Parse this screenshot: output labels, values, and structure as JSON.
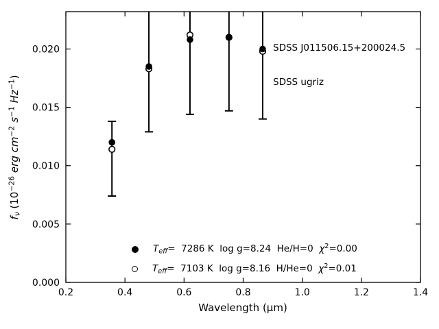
{
  "chart_data": {
    "type": "scatter",
    "description": "Photometric SED of a white dwarf with two model atmosphere fits; filled and open circles with vertical error bars, upper error bars of g,r,i,z clipped at top axis.",
    "xlabel": "Wavelength (μm)",
    "ylabel_plain": "fν (10−26 erg cm−2 s−1 Hz−1)",
    "ylabel_parts": [
      [
        "f",
        "i"
      ],
      [
        "ν",
        "isub"
      ],
      [
        " (10",
        "n"
      ],
      [
        "−26",
        "sup"
      ],
      [
        " ",
        "n"
      ],
      [
        "erg",
        "i"
      ],
      [
        " ",
        "n"
      ],
      [
        "cm",
        "i"
      ],
      [
        "−2",
        "sup"
      ],
      [
        " ",
        "n"
      ],
      [
        "s",
        "i"
      ],
      [
        "−1",
        "sup"
      ],
      [
        " ",
        "n"
      ],
      [
        "Hz",
        "i"
      ],
      [
        "−1",
        "sup"
      ],
      [
        ")",
        "n"
      ]
    ],
    "annotation": {
      "line1": "SDSS J011506.15+200024.5",
      "line2": "SDSS ugriz"
    },
    "xlim": [
      0.2,
      1.4
    ],
    "ylim": [
      0.0,
      0.0232
    ],
    "x_tick_values": [
      0.2,
      0.4,
      0.6,
      0.8,
      1.0,
      1.2,
      1.4
    ],
    "x_tick_labels": [
      "0.2",
      "0.4",
      "0.6",
      "0.8",
      "1.0",
      "1.2",
      "1.4"
    ],
    "y_tick_values": [
      0.0,
      0.005,
      0.01,
      0.015,
      0.02
    ],
    "y_tick_labels": [
      "0.000",
      "0.005",
      "0.010",
      "0.015",
      "0.020"
    ],
    "grid": false,
    "ticks": "inward, all four sides",
    "bands": [
      "u",
      "g",
      "r",
      "i",
      "z"
    ],
    "x": [
      0.356,
      0.481,
      0.62,
      0.752,
      0.866
    ],
    "series": [
      {
        "name": "Teff= 7286 K  log g=8.24  He/H=0  chi2=0.00",
        "marker": "filled-circle",
        "values": [
          0.012,
          0.0185,
          0.0208,
          0.021,
          0.02
        ]
      },
      {
        "name": "Teff= 7103 K  log g=8.16  H/He=0  chi2=0.01",
        "marker": "open-circle",
        "values": [
          0.0114,
          0.0183,
          0.0212,
          0.021,
          0.0198
        ]
      }
    ],
    "error_bars": {
      "low": [
        0.0074,
        0.0129,
        0.0144,
        0.0147,
        0.014
      ],
      "high": [
        0.0138,
        null,
        null,
        null,
        null
      ],
      "note_high_null": "upper error bar extends beyond top of axes (clipped, no cap drawn)"
    },
    "legend_position": "lower center, frameless",
    "legend_rows": [
      {
        "marker": "filled-circle",
        "parts": [
          [
            "T",
            "i"
          ],
          [
            "eff",
            "isub"
          ],
          [
            "=  7286 K  log g=8.24  He/H=0  ",
            "n"
          ],
          [
            "χ",
            "i"
          ],
          [
            "2",
            "sup"
          ],
          [
            "=0.00",
            "n"
          ]
        ]
      },
      {
        "marker": "open-circle",
        "parts": [
          [
            "T",
            "i"
          ],
          [
            "eff",
            "isub"
          ],
          [
            "=  7103 K  log g=8.16  H/He=0  ",
            "n"
          ],
          [
            "χ",
            "i"
          ],
          [
            "2",
            "sup"
          ],
          [
            "=0.01",
            "n"
          ]
        ]
      }
    ],
    "colors": {
      "foreground": "#000000",
      "background": "#ffffff"
    }
  }
}
